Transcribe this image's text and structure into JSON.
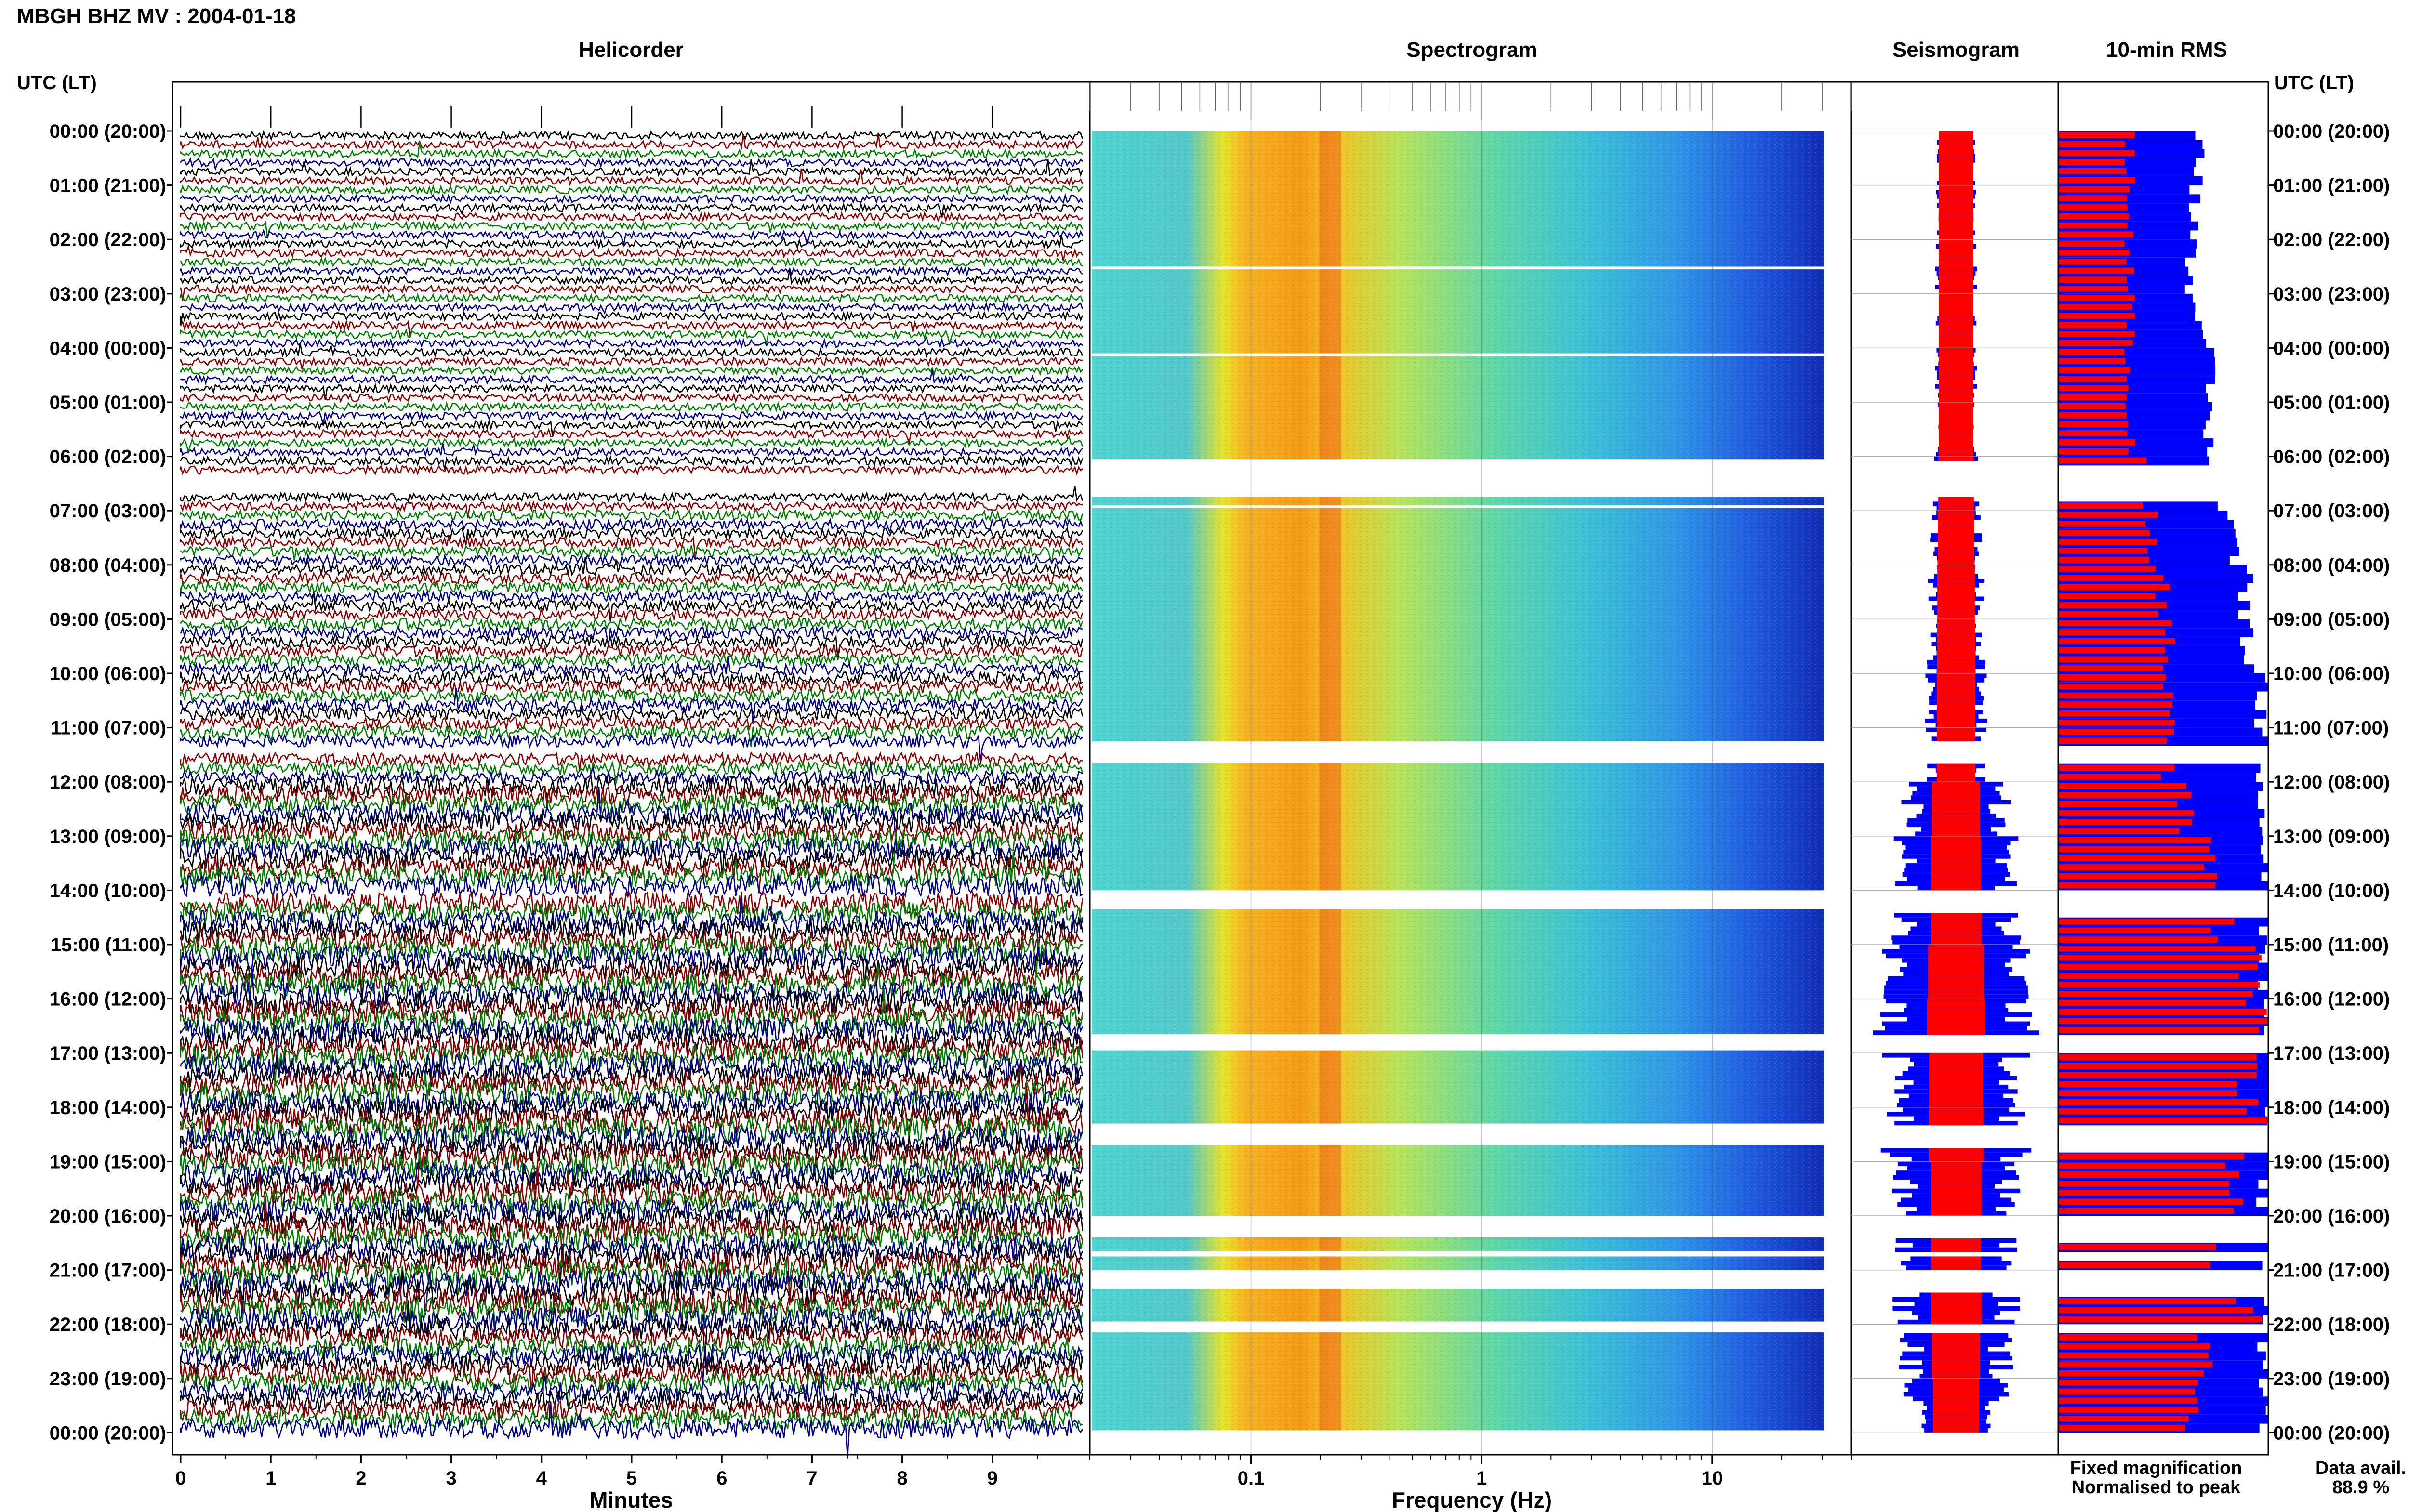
{
  "header": {
    "title": "MBGH BHZ MV : 2004-01-18",
    "utc_label": "UTC (LT)"
  },
  "panels": {
    "helicorder": "Helicorder",
    "spectrogram": "Spectrogram",
    "seismogram": "Seismogram",
    "rms": "10-min RMS"
  },
  "chart_data": [
    {
      "type": "line",
      "title": "Helicorder",
      "xlabel": "Minutes",
      "xticks": [
        "0",
        "1",
        "2",
        "3",
        "4",
        "5",
        "6",
        "7",
        "8",
        "9"
      ],
      "xlim": [
        0,
        10
      ],
      "trace_colors": [
        "#000000",
        "#8b0000",
        "#008000",
        "#00008b"
      ],
      "amplitude_per_hour": [
        1.2,
        1.2,
        1.2,
        1.2,
        1.2,
        1.2,
        1.3,
        1.6,
        1.7,
        1.8,
        2.0,
        2.0,
        3.2,
        3.4,
        3.6,
        3.8,
        4.0,
        3.8,
        4.2,
        3.8,
        4.0,
        4.2,
        3.4,
        3.2
      ],
      "gaps_hours": [
        [
          6.3,
          6.55
        ],
        [
          11.25,
          11.45
        ],
        [
          13.9,
          14.1
        ]
      ]
    },
    {
      "type": "heatmap",
      "title": "Spectrogram",
      "xlabel": "Frequency (Hz)",
      "xscale": "log",
      "xticks": [
        "0.1",
        "1",
        "10"
      ],
      "xlim": [
        0.02,
        40
      ],
      "colormap": "jet",
      "dominant_frequency_hz": 0.22,
      "gaps_hours": [
        [
          2.5,
          2.55
        ],
        [
          4.1,
          4.15
        ],
        [
          6.05,
          6.75
        ],
        [
          6.9,
          6.95
        ],
        [
          11.25,
          11.65
        ],
        [
          14.0,
          14.35
        ],
        [
          16.65,
          16.95
        ],
        [
          18.3,
          18.7
        ],
        [
          20.0,
          20.4
        ],
        [
          20.65,
          20.75
        ],
        [
          21.0,
          21.35
        ],
        [
          21.95,
          22.15
        ]
      ]
    },
    {
      "type": "line",
      "title": "Seismogram",
      "legend": [
        "Fixed magnification",
        "Normalised to peak"
      ],
      "series": [
        {
          "name": "Fixed magnification",
          "color": "#0000ff"
        },
        {
          "name": "Normalised to peak",
          "color": "#ff0000"
        }
      ],
      "envelope_per_hour": [
        0.2,
        0.2,
        0.2,
        0.2,
        0.2,
        0.2,
        0.22,
        0.25,
        0.27,
        0.28,
        0.3,
        0.3,
        0.55,
        0.6,
        0.62,
        0.75,
        0.8,
        0.7,
        0.72,
        0.62,
        0.6,
        0.62,
        0.55,
        0.5
      ],
      "gaps_hours": [
        [
          6.05,
          6.75
        ],
        [
          11.25,
          11.65
        ],
        [
          14.0,
          14.35
        ],
        [
          16.65,
          16.95
        ],
        [
          18.3,
          18.7
        ],
        [
          20.0,
          20.4
        ],
        [
          20.65,
          20.75
        ],
        [
          21.0,
          21.35
        ],
        [
          21.95,
          22.15
        ]
      ]
    },
    {
      "type": "bar",
      "title": "10-min RMS",
      "series": [
        {
          "name": "Fixed magnification",
          "color": "#0000ff"
        },
        {
          "name": "Normalised to peak",
          "color": "#ff0000"
        }
      ],
      "blue_fraction_per_hour": [
        0.68,
        0.66,
        0.64,
        0.68,
        0.72,
        0.72,
        0.75,
        0.85,
        0.9,
        0.92,
        0.98,
        1.0,
        1.0,
        1.0,
        1.0,
        1.0,
        1.0,
        1.0,
        1.0,
        1.0,
        1.0,
        1.0,
        1.0,
        1.0
      ],
      "red_fraction_per_hour": [
        0.34,
        0.34,
        0.34,
        0.34,
        0.34,
        0.34,
        0.4,
        0.45,
        0.5,
        0.52,
        0.54,
        0.52,
        0.6,
        0.7,
        0.78,
        0.9,
        0.96,
        0.92,
        0.95,
        0.82,
        0.78,
        0.9,
        0.7,
        0.62
      ],
      "gaps_hours": [
        [
          6.05,
          6.75
        ],
        [
          11.25,
          11.65
        ],
        [
          14.0,
          14.35
        ],
        [
          16.65,
          16.95
        ],
        [
          18.3,
          18.7
        ],
        [
          20.0,
          20.4
        ],
        [
          20.65,
          20.75
        ],
        [
          21.0,
          21.35
        ],
        [
          21.95,
          22.15
        ]
      ]
    }
  ],
  "time_axis": {
    "labels": [
      "00:00 (20:00)",
      "01:00 (21:00)",
      "02:00 (22:00)",
      "03:00 (23:00)",
      "04:00 (00:00)",
      "05:00 (01:00)",
      "06:00 (02:00)",
      "07:00 (03:00)",
      "08:00 (04:00)",
      "09:00 (05:00)",
      "10:00 (06:00)",
      "11:00 (07:00)",
      "12:00 (08:00)",
      "13:00 (09:00)",
      "14:00 (10:00)",
      "15:00 (11:00)",
      "16:00 (12:00)",
      "17:00 (13:00)",
      "18:00 (14:00)",
      "19:00 (15:00)",
      "20:00 (16:00)",
      "21:00 (17:00)",
      "22:00 (18:00)",
      "23:00 (19:00)",
      "00:00 (20:00)"
    ]
  },
  "footer": {
    "legend_fixed": "Fixed magnification",
    "legend_normalised": "Normalised to peak",
    "data_avail_label": "Data avail.",
    "data_avail_value": "88.9 %",
    "legend_fixed_color": "#0000ff",
    "legend_normalised_color": "#ff0000"
  }
}
